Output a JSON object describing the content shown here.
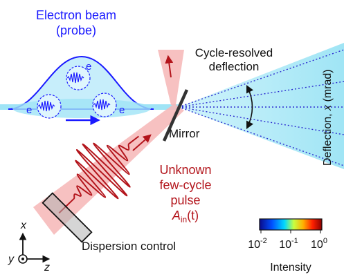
{
  "labels": {
    "electron_beam_line1": "Electron beam",
    "electron_beam_line2": "(probe)",
    "electron_1": "e",
    "electron_2": "e",
    "electron_3": "e",
    "cycle_resolved_line1": "Cycle-resolved",
    "cycle_resolved_line2": "deflection",
    "mirror": "Mirror",
    "deflection_axis_prefix": "Deflection, ",
    "deflection_axis_var": "x",
    "deflection_axis_unit": " (mrad)",
    "unknown_line1": "Unknown",
    "unknown_line2": "few-cycle",
    "unknown_line3": "pulse",
    "unknown_A": "A",
    "unknown_sub": "in",
    "unknown_t": "(t)",
    "dispersion_control": "Dispersion control",
    "axis_x": "x",
    "axis_y": "y",
    "axis_z": "z",
    "colorbar_tick_1_base": "10",
    "colorbar_tick_1_exp": "-2",
    "colorbar_tick_2_base": "10",
    "colorbar_tick_2_exp": "-1",
    "colorbar_tick_3_base": "10",
    "colorbar_tick_3_exp": "0",
    "colorbar_title": "Intensity"
  },
  "colors": {
    "electron_blue": "#1a1aff",
    "beam_fill": "#bfeffb",
    "laser_red": "#b3141b",
    "laser_beam_fill": "#f6b6b6",
    "text_black": "#111111"
  },
  "colorbar": {
    "stops": [
      "#0a0a8a",
      "#0050ff",
      "#00d8ff",
      "#c8ff40",
      "#ffb000",
      "#ff2000",
      "#8a0000"
    ]
  }
}
